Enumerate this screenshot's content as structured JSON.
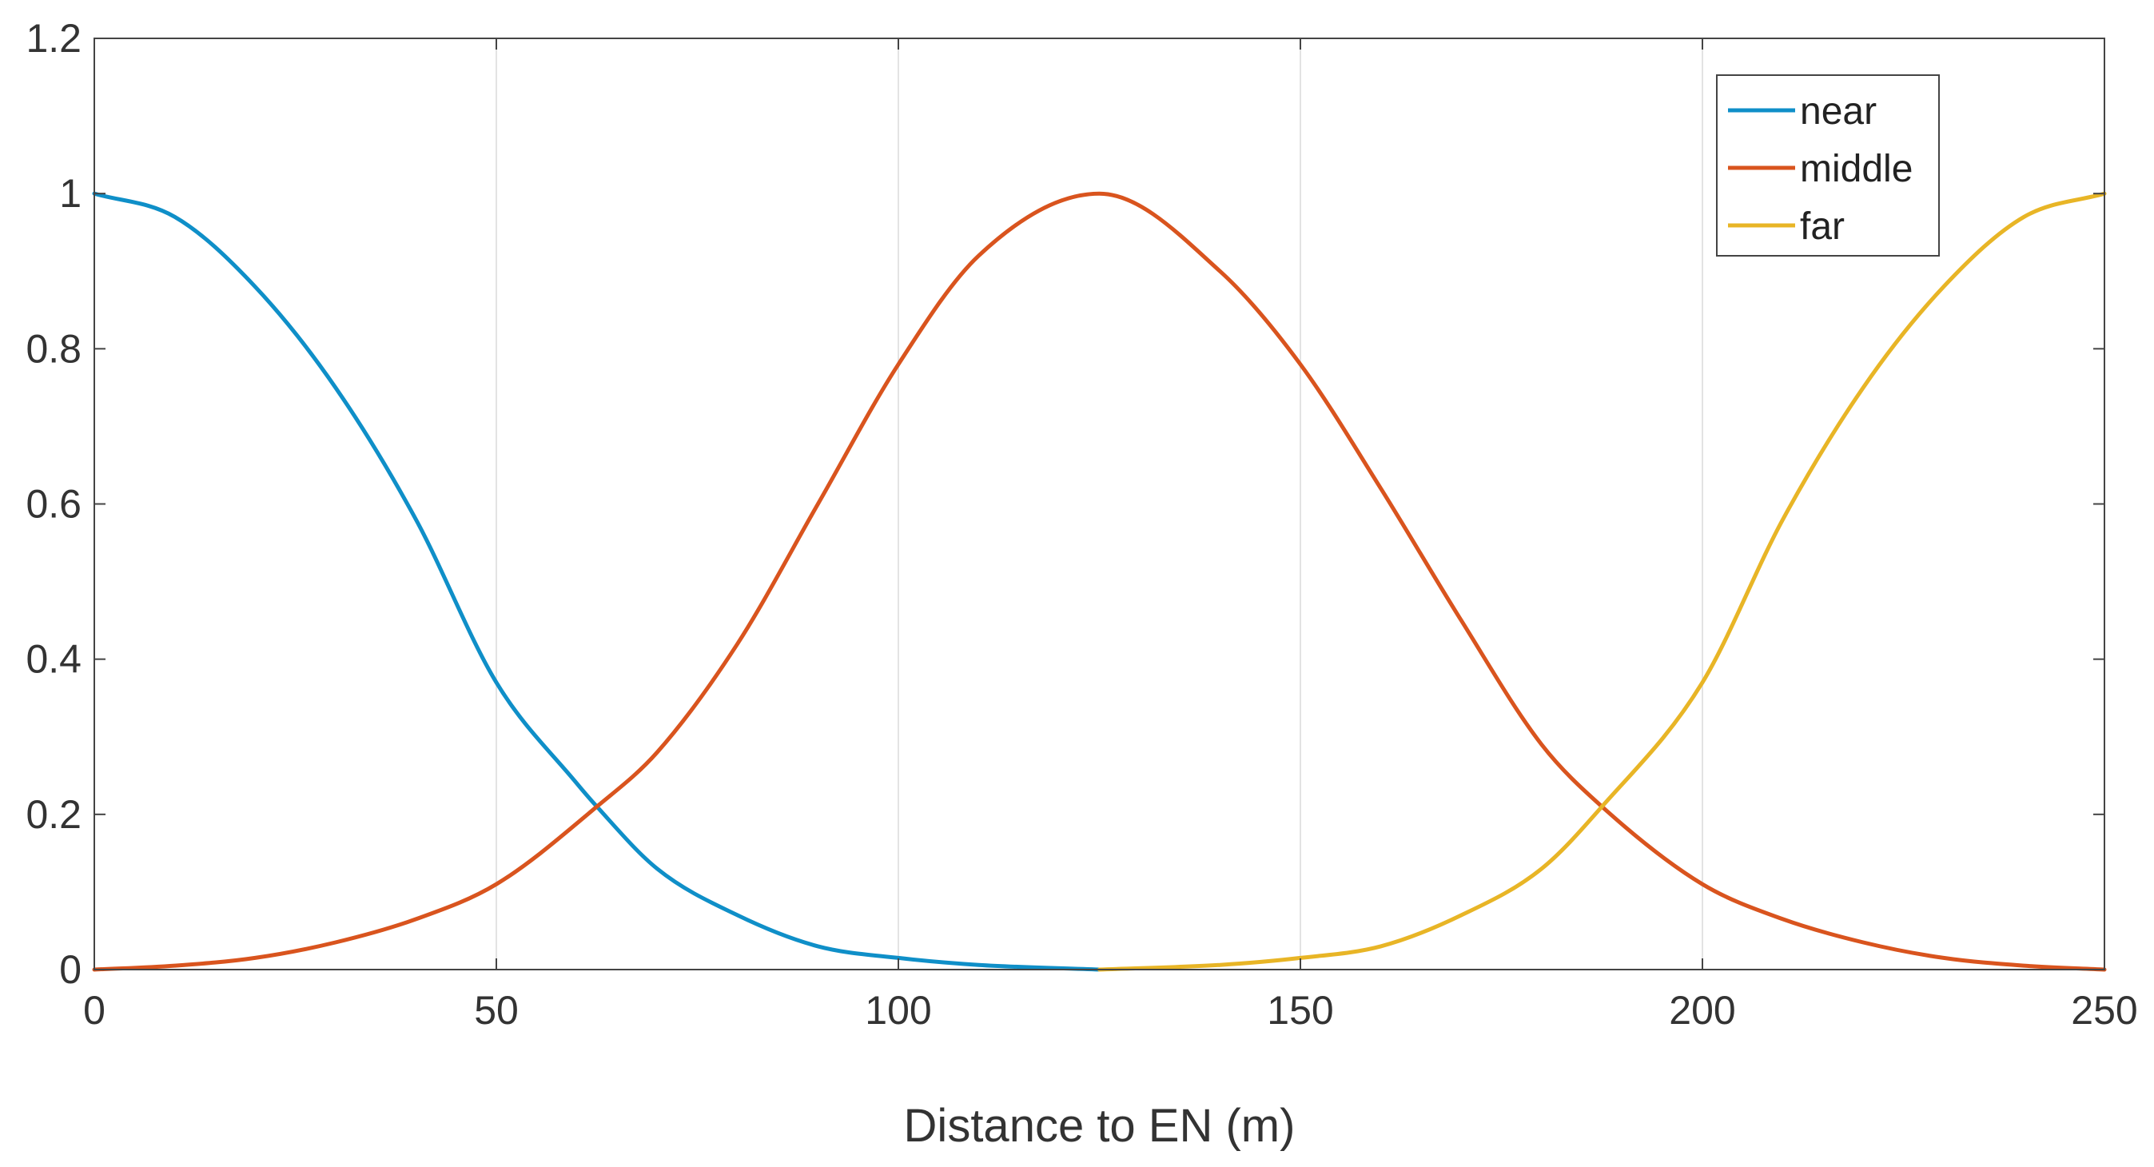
{
  "chart_data": {
    "type": "line",
    "title": "",
    "xlabel": "Distance to EN (m)",
    "ylabel": "",
    "xlim": [
      0,
      250
    ],
    "ylim": [
      0,
      1.2
    ],
    "xticks": [
      0,
      50,
      100,
      150,
      200,
      250
    ],
    "yticks": [
      0,
      0.2,
      0.4,
      0.6,
      0.8,
      1,
      1.2
    ],
    "xtick_labels": [
      "0",
      "50",
      "100",
      "150",
      "200",
      "250"
    ],
    "ytick_labels": [
      "0",
      "0.2",
      "0.4",
      "0.6",
      "0.8",
      "1",
      "1.2"
    ],
    "grid": "vertical",
    "legend": "top-right",
    "series": [
      {
        "name": "near",
        "color": "#0f8fc8",
        "x": [
          0,
          10,
          20,
          30,
          40,
          50,
          60,
          62.5,
          70,
          80,
          90,
          100,
          110,
          125
        ],
        "y": [
          1.0,
          0.97,
          0.88,
          0.75,
          0.58,
          0.37,
          0.24,
          0.21,
          0.13,
          0.07,
          0.03,
          0.015,
          0.006,
          0.0
        ]
      },
      {
        "name": "middle",
        "color": "#d9541e",
        "x": [
          0,
          10,
          20,
          30,
          40,
          50,
          62.5,
          70,
          80,
          90,
          100,
          110,
          125,
          140,
          150,
          160,
          170,
          180,
          187.5,
          200,
          210,
          220,
          230,
          240,
          250
        ],
        "y": [
          0.0,
          0.005,
          0.015,
          0.035,
          0.065,
          0.11,
          0.21,
          0.28,
          0.42,
          0.6,
          0.78,
          0.92,
          1.0,
          0.9,
          0.78,
          0.62,
          0.45,
          0.29,
          0.21,
          0.11,
          0.065,
          0.035,
          0.015,
          0.005,
          0.0
        ]
      },
      {
        "name": "far",
        "color": "#e8b526",
        "x": [
          125,
          140,
          150,
          160,
          170,
          180,
          187.5,
          200,
          210,
          220,
          230,
          240,
          250
        ],
        "y": [
          0.0,
          0.006,
          0.015,
          0.03,
          0.07,
          0.13,
          0.21,
          0.37,
          0.58,
          0.75,
          0.88,
          0.97,
          1.0
        ]
      }
    ]
  }
}
